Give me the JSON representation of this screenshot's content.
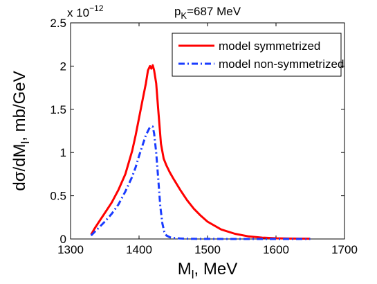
{
  "chart_data": {
    "type": "line",
    "title_main": "p",
    "title_sub": "K",
    "title_rest": "=687 MeV",
    "xlabel_main": "M",
    "xlabel_sub": "l",
    "xlabel_rest": ", MeV",
    "ylabel_main": "dσ/dM",
    "ylabel_sub": "l",
    "ylabel_rest": ", mb/GeV",
    "y_multiplier_base": "x 10",
    "y_multiplier_exp": "−12",
    "xlim": [
      1300,
      1700
    ],
    "ylim": [
      0,
      2.5
    ],
    "x_ticks": [
      1300,
      1400,
      1500,
      1600,
      1700
    ],
    "x_tick_labels": [
      "1300",
      "1400",
      "1500",
      "1600",
      "1700"
    ],
    "y_ticks": [
      0,
      0.5,
      1,
      1.5,
      2,
      2.5
    ],
    "y_tick_labels": [
      "0",
      "0.5",
      "1",
      "1.5",
      "2",
      "2.5"
    ],
    "legend_position": "top-right",
    "series": [
      {
        "name": "model symmetrized",
        "color": "#ff0000",
        "dash": "solid",
        "x": [
          1330,
          1335,
          1340,
          1350,
          1360,
          1370,
          1380,
          1390,
          1395,
          1400,
          1405,
          1410,
          1413,
          1416,
          1418,
          1420,
          1422,
          1425,
          1428,
          1432,
          1436,
          1440,
          1445,
          1450,
          1460,
          1470,
          1480,
          1490,
          1500,
          1520,
          1540,
          1560,
          1580,
          1600,
          1620,
          1650
        ],
        "y": [
          0.05,
          0.12,
          0.18,
          0.3,
          0.42,
          0.57,
          0.75,
          1.02,
          1.2,
          1.4,
          1.6,
          1.8,
          1.95,
          2.0,
          1.97,
          2.01,
          1.95,
          1.8,
          1.5,
          1.1,
          0.93,
          0.85,
          0.77,
          0.7,
          0.57,
          0.45,
          0.35,
          0.27,
          0.2,
          0.11,
          0.06,
          0.03,
          0.015,
          0.008,
          0.005,
          0.003
        ]
      },
      {
        "name": "model non-symmetrized",
        "color": "#1a3cff",
        "dash": "dashdot",
        "x": [
          1330,
          1340,
          1350,
          1360,
          1370,
          1380,
          1390,
          1395,
          1400,
          1405,
          1410,
          1415,
          1418,
          1420,
          1422,
          1425,
          1428,
          1431,
          1434,
          1437,
          1440,
          1445,
          1450,
          1460,
          1480,
          1500,
          1550,
          1600,
          1650
        ],
        "y": [
          0.04,
          0.12,
          0.2,
          0.29,
          0.4,
          0.55,
          0.72,
          0.83,
          0.96,
          1.08,
          1.2,
          1.28,
          1.3,
          1.3,
          1.22,
          1.0,
          0.7,
          0.38,
          0.18,
          0.08,
          0.04,
          0.02,
          0.012,
          0.006,
          0.002,
          0.001,
          0.0,
          0.0,
          0.0
        ]
      }
    ]
  }
}
